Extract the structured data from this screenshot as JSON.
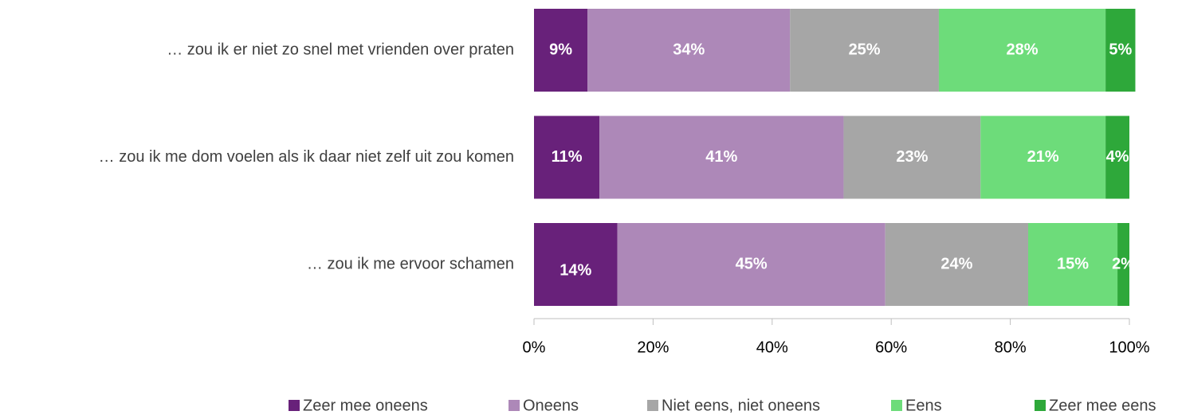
{
  "chart_data": {
    "type": "stacked_barh",
    "categories": [
      "… zou ik er niet zo snel met vrienden over praten",
      "… zou ik me dom voelen als ik daar niet zelf uit zou komen",
      "… zou ik me ervoor schamen"
    ],
    "series": [
      {
        "name": "Zeer mee oneens",
        "color": "#68217a",
        "values": [
          9,
          11,
          14
        ],
        "value_labels": [
          "9%",
          "11%",
          "14%"
        ]
      },
      {
        "name": "Oneens",
        "color": "#ad88b8",
        "values": [
          34,
          41,
          45
        ],
        "value_labels": [
          "34%",
          "41%",
          "45%"
        ]
      },
      {
        "name": "Niet eens, niet oneens",
        "color": "#a6a6a6",
        "values": [
          25,
          23,
          24
        ],
        "value_labels": [
          "25%",
          "23%",
          "24%"
        ]
      },
      {
        "name": "Eens",
        "color": "#6ddc7a",
        "values": [
          28,
          21,
          15
        ],
        "value_labels": [
          "28%",
          "21%",
          "15%"
        ]
      },
      {
        "name": "Zeer mee eens",
        "color": "#2ea83a",
        "values": [
          5,
          4,
          2
        ],
        "value_labels": [
          "5%",
          "4%",
          "2%"
        ]
      }
    ],
    "xlim": [
      0,
      100
    ],
    "xticks": [
      {
        "value": 0,
        "label": "0%"
      },
      {
        "value": 20,
        "label": "20%"
      },
      {
        "value": 40,
        "label": "40%"
      },
      {
        "value": 60,
        "label": "60%"
      },
      {
        "value": 80,
        "label": "80%"
      },
      {
        "value": 100,
        "label": "100%"
      }
    ],
    "legend": "bottom"
  }
}
